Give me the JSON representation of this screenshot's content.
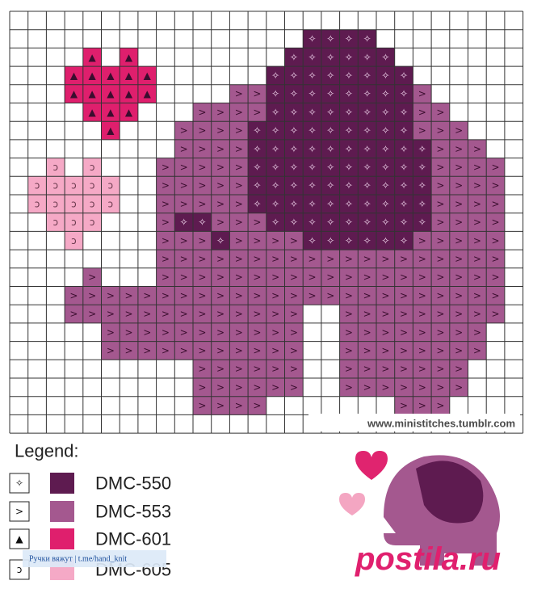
{
  "pattern": {
    "credit": "www.ministitches.tumblr.com"
  },
  "legend": {
    "title": "Legend:",
    "items": [
      {
        "symbol": "✧",
        "color": "#5e1b50",
        "label": "DMC-550"
      },
      {
        "symbol": ">",
        "color": "#a4588f",
        "label": "DMC-553"
      },
      {
        "symbol": "▲",
        "color": "#df1f6d",
        "label": "DMC-601"
      },
      {
        "symbol": "ↄ",
        "color": "#f5a9c6",
        "label": "DMC-605"
      }
    ]
  },
  "watermark": "Ручки вяжут | t.me/hand_knit",
  "logo": "postila.ru"
}
